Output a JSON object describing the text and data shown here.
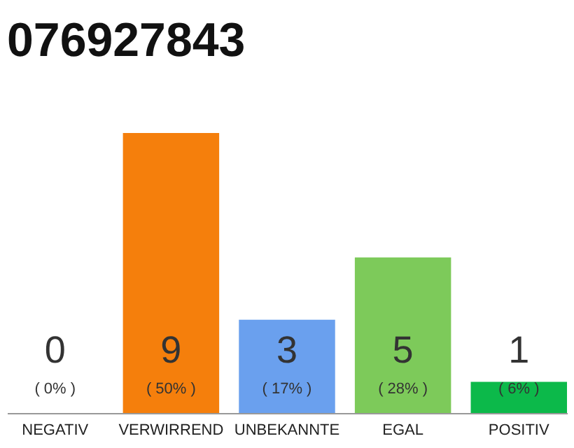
{
  "chart_data": {
    "type": "bar",
    "title": "076927843",
    "categories": [
      "NEGATIV",
      "VERWIRREND",
      "UNBEKANNTE",
      "EGAL",
      "POSITIV"
    ],
    "values": [
      0,
      9,
      3,
      5,
      1
    ],
    "colors": [
      "#cccccc",
      "#f57f0c",
      "#6aa0ee",
      "#7dca5a",
      "#0cb94a"
    ],
    "data_labels": true,
    "annotations": [
      "( 0% )",
      "( 50% )",
      "( 17% )",
      "( 28% )",
      "( 6% )"
    ]
  }
}
